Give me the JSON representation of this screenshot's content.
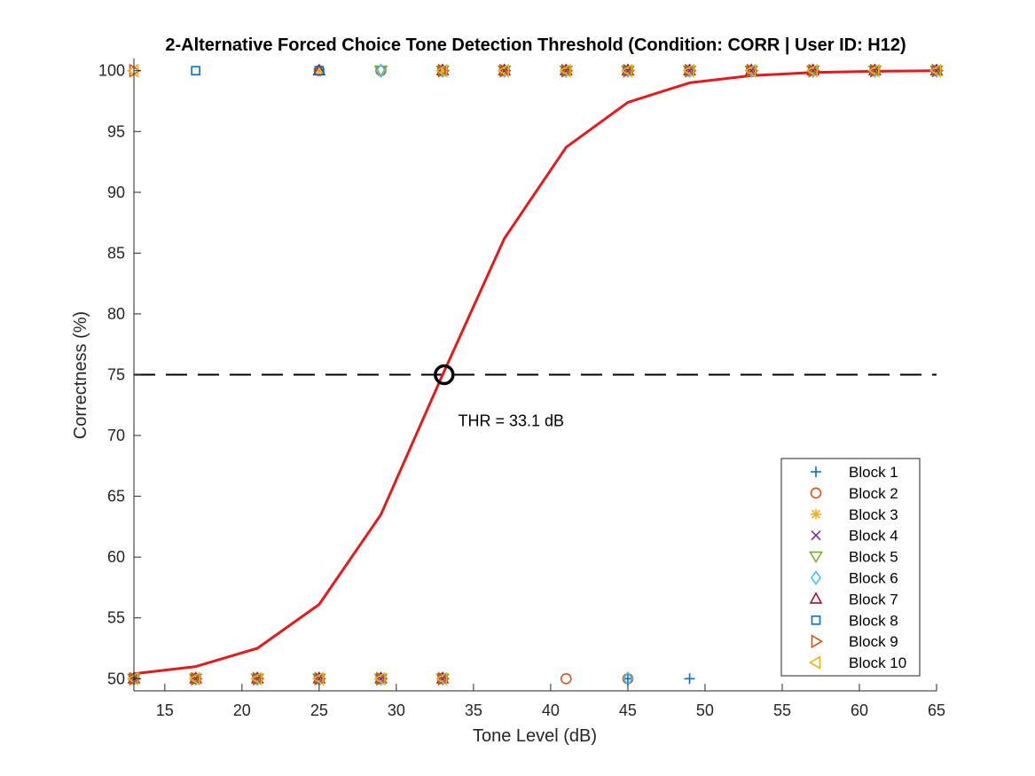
{
  "chart_data": {
    "type": "line",
    "title": "2-Alternative Forced Choice Tone Detection Threshold (Condition: CORR | User ID: H12)",
    "xlabel": "Tone Level (dB)",
    "ylabel": "Correctness (%)",
    "xlim": [
      13,
      65
    ],
    "ylim": [
      49,
      101
    ],
    "xticks": [
      15,
      20,
      25,
      30,
      35,
      40,
      45,
      50,
      55,
      60,
      65
    ],
    "yticks": [
      50,
      55,
      60,
      65,
      70,
      75,
      80,
      85,
      90,
      95,
      100
    ],
    "grid": false,
    "legend_position": "bottom-right",
    "fit_curve": {
      "color": "#e41a1c",
      "x": [
        13,
        17,
        21,
        25,
        29,
        33,
        37,
        41,
        45,
        49,
        53,
        57,
        61,
        65
      ],
      "y": [
        50.4,
        51.0,
        52.5,
        56.1,
        63.5,
        75.0,
        86.2,
        93.7,
        97.4,
        99.0,
        99.6,
        99.85,
        99.95,
        100
      ]
    },
    "threshold_line": {
      "y": 75,
      "style": "dashed",
      "color": "#000000"
    },
    "threshold_marker": {
      "x": 33.1,
      "y": 75
    },
    "annotation": {
      "text": "THR = 33.1 dB",
      "x": 34.0,
      "y": 71.2
    },
    "series": [
      {
        "name": "Block 1",
        "marker": "plus",
        "color": "#0072bd",
        "points": [
          [
            13,
            50
          ],
          [
            17,
            50
          ],
          [
            21,
            50
          ],
          [
            25,
            50
          ],
          [
            29,
            50
          ],
          [
            33,
            50
          ],
          [
            45,
            50
          ],
          [
            49,
            50
          ],
          [
            33,
            100
          ],
          [
            37,
            100
          ],
          [
            41,
            100
          ],
          [
            45,
            100
          ],
          [
            49,
            100
          ],
          [
            53,
            100
          ],
          [
            57,
            100
          ],
          [
            61,
            100
          ],
          [
            65,
            100
          ]
        ]
      },
      {
        "name": "Block 2",
        "marker": "circle",
        "color": "#d95319",
        "points": [
          [
            13,
            50
          ],
          [
            17,
            50
          ],
          [
            21,
            50
          ],
          [
            25,
            50
          ],
          [
            29,
            50
          ],
          [
            33,
            50
          ],
          [
            41,
            50
          ],
          [
            45,
            50
          ],
          [
            25,
            100
          ],
          [
            29,
            100
          ],
          [
            33,
            100
          ],
          [
            37,
            100
          ],
          [
            41,
            100
          ],
          [
            45,
            100
          ],
          [
            49,
            100
          ],
          [
            53,
            100
          ],
          [
            57,
            100
          ],
          [
            61,
            100
          ],
          [
            65,
            100
          ]
        ]
      },
      {
        "name": "Block 3",
        "marker": "asterisk",
        "color": "#edb120",
        "points": [
          [
            13,
            50
          ],
          [
            17,
            50
          ],
          [
            21,
            50
          ],
          [
            25,
            50
          ],
          [
            29,
            50
          ],
          [
            33,
            50
          ],
          [
            25,
            100
          ],
          [
            33,
            100
          ],
          [
            37,
            100
          ],
          [
            41,
            100
          ],
          [
            45,
            100
          ],
          [
            49,
            100
          ],
          [
            53,
            100
          ],
          [
            57,
            100
          ],
          [
            61,
            100
          ],
          [
            65,
            100
          ]
        ]
      },
      {
        "name": "Block 4",
        "marker": "x",
        "color": "#7e2f8e",
        "points": [
          [
            13,
            50
          ],
          [
            17,
            50
          ],
          [
            21,
            50
          ],
          [
            25,
            50
          ],
          [
            29,
            50
          ],
          [
            33,
            50
          ],
          [
            37,
            100
          ],
          [
            41,
            100
          ],
          [
            45,
            100
          ],
          [
            49,
            100
          ],
          [
            53,
            100
          ],
          [
            57,
            100
          ],
          [
            61,
            100
          ],
          [
            65,
            100
          ]
        ]
      },
      {
        "name": "Block 5",
        "marker": "triangle-down",
        "color": "#77ac30",
        "points": [
          [
            13,
            50
          ],
          [
            17,
            50
          ],
          [
            21,
            50
          ],
          [
            25,
            50
          ],
          [
            29,
            50
          ],
          [
            33,
            50
          ],
          [
            29,
            100
          ],
          [
            33,
            100
          ],
          [
            37,
            100
          ],
          [
            41,
            100
          ],
          [
            45,
            100
          ],
          [
            49,
            100
          ],
          [
            53,
            100
          ],
          [
            57,
            100
          ],
          [
            61,
            100
          ],
          [
            65,
            100
          ]
        ]
      },
      {
        "name": "Block 6",
        "marker": "diamond",
        "color": "#4dbeee",
        "points": [
          [
            13,
            50
          ],
          [
            17,
            50
          ],
          [
            21,
            50
          ],
          [
            25,
            50
          ],
          [
            29,
            50
          ],
          [
            33,
            50
          ],
          [
            45,
            50
          ],
          [
            29,
            100
          ],
          [
            33,
            100
          ],
          [
            37,
            100
          ],
          [
            41,
            100
          ],
          [
            45,
            100
          ],
          [
            49,
            100
          ],
          [
            53,
            100
          ],
          [
            57,
            100
          ],
          [
            61,
            100
          ],
          [
            65,
            100
          ]
        ]
      },
      {
        "name": "Block 7",
        "marker": "triangle-up",
        "color": "#a2142f",
        "points": [
          [
            13,
            50
          ],
          [
            17,
            50
          ],
          [
            21,
            50
          ],
          [
            25,
            50
          ],
          [
            29,
            50
          ],
          [
            33,
            50
          ],
          [
            25,
            100
          ],
          [
            33,
            100
          ],
          [
            37,
            100
          ],
          [
            41,
            100
          ],
          [
            45,
            100
          ],
          [
            49,
            100
          ],
          [
            53,
            100
          ],
          [
            57,
            100
          ],
          [
            61,
            100
          ],
          [
            65,
            100
          ]
        ]
      },
      {
        "name": "Block 8",
        "marker": "square",
        "color": "#0072bd",
        "points": [
          [
            13,
            50
          ],
          [
            17,
            50
          ],
          [
            21,
            50
          ],
          [
            25,
            50
          ],
          [
            29,
            50
          ],
          [
            33,
            50
          ],
          [
            17,
            100
          ],
          [
            25,
            100
          ],
          [
            33,
            100
          ],
          [
            37,
            100
          ],
          [
            41,
            100
          ],
          [
            45,
            100
          ],
          [
            49,
            100
          ],
          [
            53,
            100
          ],
          [
            57,
            100
          ],
          [
            61,
            100
          ],
          [
            65,
            100
          ]
        ]
      },
      {
        "name": "Block 9",
        "marker": "triangle-right",
        "color": "#d95319",
        "points": [
          [
            13,
            50
          ],
          [
            17,
            50
          ],
          [
            21,
            50
          ],
          [
            25,
            50
          ],
          [
            29,
            50
          ],
          [
            33,
            50
          ],
          [
            13,
            100
          ],
          [
            33,
            100
          ],
          [
            37,
            100
          ],
          [
            41,
            100
          ],
          [
            45,
            100
          ],
          [
            49,
            100
          ],
          [
            53,
            100
          ],
          [
            57,
            100
          ],
          [
            61,
            100
          ],
          [
            65,
            100
          ]
        ]
      },
      {
        "name": "Block 10",
        "marker": "triangle-left",
        "color": "#edb120",
        "points": [
          [
            13,
            50
          ],
          [
            17,
            50
          ],
          [
            21,
            50
          ],
          [
            25,
            50
          ],
          [
            29,
            50
          ],
          [
            33,
            50
          ],
          [
            13,
            100
          ],
          [
            33,
            100
          ],
          [
            37,
            100
          ],
          [
            41,
            100
          ],
          [
            45,
            100
          ],
          [
            49,
            100
          ],
          [
            53,
            100
          ],
          [
            57,
            100
          ],
          [
            61,
            100
          ],
          [
            65,
            100
          ]
        ]
      }
    ]
  }
}
